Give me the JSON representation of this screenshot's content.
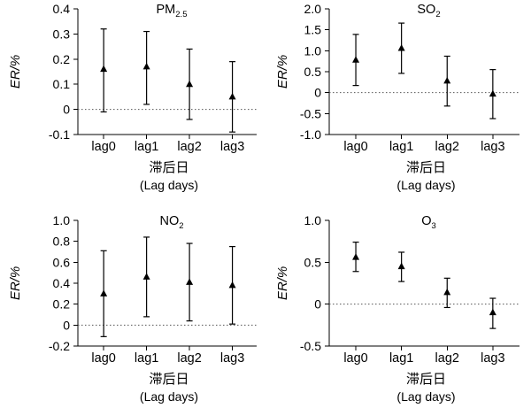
{
  "chart_data": [
    {
      "type": "scatter",
      "title": "PM",
      "title_sub": "2.5",
      "ylabel": "ER/%",
      "xlabel": "滞后日",
      "xlabel_sub": "(Lag days)",
      "categories": [
        "lag0",
        "lag1",
        "lag2",
        "lag3"
      ],
      "ylim": [
        -0.1,
        0.4
      ],
      "yticks": [
        "-0.1",
        "0",
        "0.1",
        "0.2",
        "0.3",
        "0.4"
      ],
      "series": [
        {
          "values": [
            0.16,
            0.17,
            0.1,
            0.05
          ],
          "lower": [
            -0.01,
            0.02,
            -0.04,
            -0.09
          ],
          "upper": [
            0.32,
            0.31,
            0.24,
            0.19
          ]
        }
      ]
    },
    {
      "type": "scatter",
      "title": "SO",
      "title_sub": "2",
      "ylabel": "ER/%",
      "xlabel": "滞后日",
      "xlabel_sub": "(Lag days)",
      "categories": [
        "lag0",
        "lag1",
        "lag2",
        "lag3"
      ],
      "ylim": [
        -1.0,
        2.0
      ],
      "yticks": [
        "-1.0",
        "-0.5",
        "0",
        "0.5",
        "1.0",
        "1.5",
        "2.0"
      ],
      "series": [
        {
          "values": [
            0.78,
            1.06,
            0.28,
            -0.03
          ],
          "lower": [
            0.17,
            0.46,
            -0.32,
            -0.62
          ],
          "upper": [
            1.39,
            1.66,
            0.87,
            0.55
          ]
        }
      ]
    },
    {
      "type": "scatter",
      "title": "NO",
      "title_sub": "2",
      "ylabel": "ER/%",
      "xlabel": "滞后日",
      "xlabel_sub": "(Lag days)",
      "categories": [
        "lag0",
        "lag1",
        "lag2",
        "lag3"
      ],
      "ylim": [
        -0.2,
        1.0
      ],
      "yticks": [
        "-0.2",
        "0",
        "0.2",
        "0.4",
        "0.6",
        "0.8",
        "1.0"
      ],
      "series": [
        {
          "values": [
            0.3,
            0.46,
            0.41,
            0.38
          ],
          "lower": [
            -0.11,
            0.08,
            0.04,
            0.01
          ],
          "upper": [
            0.71,
            0.84,
            0.78,
            0.75
          ]
        }
      ]
    },
    {
      "type": "scatter",
      "title": "O",
      "title_sub": "3",
      "ylabel": "ER/%",
      "xlabel": "滞后日",
      "xlabel_sub": "(Lag days)",
      "categories": [
        "lag0",
        "lag1",
        "lag2",
        "lag3"
      ],
      "ylim": [
        -0.5,
        1.0
      ],
      "yticks": [
        "-0.5",
        "0",
        "0.5",
        "1.0"
      ],
      "series": [
        {
          "values": [
            0.56,
            0.45,
            0.14,
            -0.1
          ],
          "lower": [
            0.39,
            0.27,
            -0.04,
            -0.29
          ],
          "upper": [
            0.74,
            0.62,
            0.31,
            0.07
          ]
        }
      ]
    }
  ]
}
